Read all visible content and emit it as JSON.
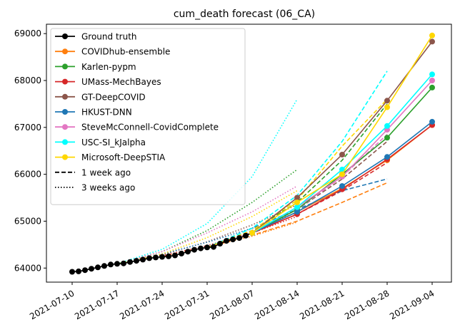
{
  "chart_data": {
    "type": "line",
    "title": "cum_death forecast (06_CA)",
    "xlabel": "",
    "ylabel": "",
    "x_tick_labels": [
      "2021-07-10",
      "2021-07-17",
      "2021-07-24",
      "2021-07-31",
      "2021-08-07",
      "2021-08-14",
      "2021-08-21",
      "2021-08-28",
      "2021-09-04"
    ],
    "y_tick_labels": [
      "64000",
      "65000",
      "66000",
      "67000",
      "68000",
      "69000"
    ],
    "xlim": [
      "2021-07-06",
      "2021-09-07"
    ],
    "ylim": [
      63700,
      69200
    ],
    "grid": false,
    "legend_position": "top-left",
    "ground_truth": {
      "name": "Ground truth",
      "color": "#000000",
      "x": [
        "2021-07-10",
        "2021-07-11",
        "2021-07-12",
        "2021-07-13",
        "2021-07-14",
        "2021-07-15",
        "2021-07-16",
        "2021-07-17",
        "2021-07-18",
        "2021-07-19",
        "2021-07-20",
        "2021-07-21",
        "2021-07-22",
        "2021-07-23",
        "2021-07-24",
        "2021-07-25",
        "2021-07-26",
        "2021-07-27",
        "2021-07-28",
        "2021-07-29",
        "2021-07-30",
        "2021-07-31",
        "2021-08-01",
        "2021-08-02",
        "2021-08-03",
        "2021-08-04",
        "2021-08-05",
        "2021-08-06",
        "2021-08-07"
      ],
      "y": [
        63920,
        63930,
        63955,
        63985,
        64015,
        64045,
        64075,
        64090,
        64100,
        64130,
        64155,
        64180,
        64210,
        64225,
        64240,
        64250,
        64270,
        64310,
        64350,
        64390,
        64420,
        64440,
        64450,
        64520,
        64580,
        64610,
        64640,
        64690,
        64750
      ]
    },
    "series": [
      {
        "name": "COVIDhub-ensemble",
        "color": "#ff7f0e",
        "current": {
          "x": [
            "2021-08-07",
            "2021-08-14",
            "2021-08-21",
            "2021-08-28",
            "2021-09-04"
          ],
          "y": [
            64750,
            65200,
            65700,
            66300,
            67050
          ]
        },
        "week1": {
          "x": [
            "2021-07-31",
            "2021-08-07",
            "2021-08-14",
            "2021-08-21",
            "2021-08-28"
          ],
          "y": [
            64440,
            64700,
            65000,
            65400,
            65820
          ]
        },
        "week3": {
          "x": [
            "2021-07-17",
            "2021-07-24",
            "2021-07-31",
            "2021-08-07",
            "2021-08-14"
          ],
          "y": [
            64090,
            64250,
            64450,
            64680,
            64980
          ]
        }
      },
      {
        "name": "Karlen-pypm",
        "color": "#2ca02c",
        "current": {
          "x": [
            "2021-08-07",
            "2021-08-14",
            "2021-08-21",
            "2021-08-28",
            "2021-09-04"
          ],
          "y": [
            64750,
            65250,
            66000,
            66780,
            67850
          ]
        },
        "week1": {
          "x": [
            "2021-07-31",
            "2021-08-07",
            "2021-08-14",
            "2021-08-21",
            "2021-08-28"
          ],
          "y": [
            64440,
            64800,
            65400,
            66300,
            67500
          ]
        },
        "week3": {
          "x": [
            "2021-07-17",
            "2021-07-24",
            "2021-07-31",
            "2021-08-07",
            "2021-08-14"
          ],
          "y": [
            64090,
            64350,
            64800,
            65400,
            66100
          ]
        }
      },
      {
        "name": "UMass-MechBayes",
        "color": "#d62728",
        "current": {
          "x": [
            "2021-08-07",
            "2021-08-14",
            "2021-08-21",
            "2021-08-28",
            "2021-09-04"
          ],
          "y": [
            64750,
            65150,
            65680,
            66320,
            67050
          ]
        },
        "week1": {
          "x": [
            "2021-07-31",
            "2021-08-07",
            "2021-08-14",
            "2021-08-21",
            "2021-08-28"
          ],
          "y": [
            64440,
            64740,
            65150,
            65650,
            66250
          ]
        },
        "week3": {
          "x": [
            "2021-07-17",
            "2021-07-24",
            "2021-07-31",
            "2021-08-07",
            "2021-08-14"
          ],
          "y": [
            64090,
            64260,
            64480,
            64750,
            65100
          ]
        }
      },
      {
        "name": "GT-DeepCOVID",
        "color": "#8c564b",
        "current": {
          "x": [
            "2021-08-07",
            "2021-08-14",
            "2021-08-21",
            "2021-08-28",
            "2021-09-04"
          ],
          "y": [
            64750,
            65500,
            66420,
            67570,
            68830
          ]
        },
        "week1": {
          "x": [
            "2021-07-31",
            "2021-08-07",
            "2021-08-14",
            "2021-08-21",
            "2021-08-28"
          ],
          "y": [
            64440,
            64780,
            65250,
            65900,
            66700
          ]
        },
        "week3": {
          "x": [
            "2021-07-17",
            "2021-07-24",
            "2021-07-31",
            "2021-08-07",
            "2021-08-14"
          ],
          "y": [
            64090,
            64280,
            64560,
            64920,
            65350
          ]
        }
      },
      {
        "name": "HKUST-DNN",
        "color": "#1f77b4",
        "current": {
          "x": [
            "2021-08-07",
            "2021-08-14",
            "2021-08-21",
            "2021-08-28",
            "2021-09-04"
          ],
          "y": [
            64750,
            65200,
            65750,
            66370,
            67120
          ]
        },
        "week1": {
          "x": [
            "2021-07-31",
            "2021-08-07",
            "2021-08-14",
            "2021-08-21",
            "2021-08-28"
          ],
          "y": [
            64440,
            64850,
            65250,
            65650,
            65900
          ]
        },
        "week3": {
          "x": [
            "2021-07-17",
            "2021-07-24",
            "2021-07-31",
            "2021-08-07",
            "2021-08-14"
          ],
          "y": [
            64090,
            64300,
            64550,
            64850,
            65180
          ]
        }
      },
      {
        "name": "SteveMcConnell-CovidComplete",
        "color": "#e377c2",
        "current": {
          "x": [
            "2021-08-07",
            "2021-08-14",
            "2021-08-21",
            "2021-08-28",
            "2021-09-04"
          ],
          "y": [
            64750,
            65300,
            65950,
            66950,
            68000
          ]
        },
        "week1": {
          "x": [
            "2021-07-31",
            "2021-08-07",
            "2021-08-14",
            "2021-08-21",
            "2021-08-28"
          ],
          "y": [
            64440,
            64760,
            65250,
            65950,
            66850
          ]
        },
        "week3": {
          "x": [
            "2021-07-17",
            "2021-07-24",
            "2021-07-31",
            "2021-08-07",
            "2021-08-14"
          ],
          "y": [
            64090,
            64350,
            64750,
            65200,
            65750
          ]
        }
      },
      {
        "name": "USC-SI_kJalpha",
        "color": "#00ffff",
        "current": {
          "x": [
            "2021-08-07",
            "2021-08-14",
            "2021-08-21",
            "2021-08-28",
            "2021-09-04"
          ],
          "y": [
            64750,
            65300,
            66100,
            67030,
            68130
          ]
        },
        "week1": {
          "x": [
            "2021-07-31",
            "2021-08-07",
            "2021-08-14",
            "2021-08-21",
            "2021-08-28"
          ],
          "y": [
            64440,
            64850,
            65550,
            66700,
            68200
          ]
        },
        "week3": {
          "x": [
            "2021-07-17",
            "2021-07-24",
            "2021-07-31",
            "2021-08-07",
            "2021-08-14"
          ],
          "y": [
            64090,
            64400,
            64950,
            65950,
            67600
          ]
        }
      },
      {
        "name": "Microsoft-DeepSTIA",
        "color": "#ffd700",
        "current": {
          "x": [
            "2021-08-07",
            "2021-08-14",
            "2021-08-21",
            "2021-08-28",
            "2021-09-04"
          ],
          "y": [
            64750,
            65400,
            66000,
            67430,
            68960
          ]
        },
        "week1": {
          "x": [
            "2021-07-31",
            "2021-08-07",
            "2021-08-14",
            "2021-08-21",
            "2021-08-28"
          ],
          "y": [
            64440,
            64800,
            65450,
            66600,
            67600
          ]
        },
        "week3": {
          "x": [
            "2021-07-17",
            "2021-07-24",
            "2021-07-31",
            "2021-08-07",
            "2021-08-14"
          ],
          "y": [
            64090,
            64300,
            64650,
            65100,
            65650
          ]
        }
      }
    ],
    "style_legend": [
      {
        "label": "1 week ago",
        "dash": "dashed"
      },
      {
        "label": "3 weeks ago",
        "dash": "dotted"
      }
    ],
    "legend_order": [
      "Ground truth",
      "COVIDhub-ensemble",
      "Karlen-pypm",
      "UMass-MechBayes",
      "GT-DeepCOVID",
      "HKUST-DNN",
      "SteveMcConnell-CovidComplete",
      "USC-SI_kJalpha",
      "Microsoft-DeepSTIA",
      "1 week ago",
      "3 weeks ago"
    ]
  }
}
